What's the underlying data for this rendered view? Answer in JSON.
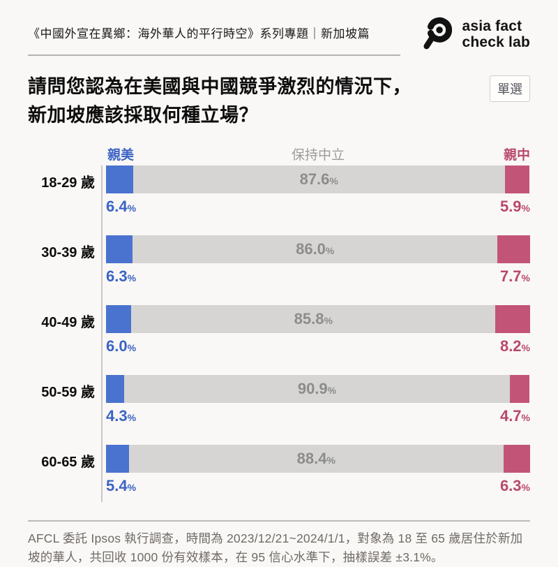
{
  "header": {
    "series_title": "《中國外宣在異鄉：海外華人的平行時空》系列專題｜新加坡篇",
    "logo": {
      "line1": "asia fact",
      "line2": "check lab"
    }
  },
  "question": {
    "line1": "請問您認為在美國與中國競爭激烈的情況下，",
    "line2": "新加坡應該採取何種立場？",
    "badge": "單選"
  },
  "chart_data": {
    "type": "bar",
    "orientation": "horizontal",
    "stacked": true,
    "unit": "%",
    "legend_position": "top",
    "categories": [
      "18-29 歲",
      "30-39 歲",
      "40-49 歲",
      "50-59 歲",
      "60-65 歲"
    ],
    "series": [
      {
        "name": "親美",
        "color": "#4a73cf",
        "label_color": "#3b63c4",
        "values": [
          6.4,
          6.3,
          6.0,
          4.3,
          5.4
        ]
      },
      {
        "name": "保持中立",
        "color": "#d6d5d3",
        "label_color": "#8c8c8c",
        "values": [
          87.6,
          86.0,
          85.8,
          90.9,
          88.4
        ]
      },
      {
        "name": "親中",
        "color": "#c25577",
        "label_color": "#b8486e",
        "values": [
          5.9,
          7.7,
          8.2,
          4.7,
          6.3
        ]
      }
    ]
  },
  "footer": {
    "source": "AFCL 委託 Ipsos 執行調查，時間為 2023/12/21~2024/1/1，對象為 18 至 65 歲居住於新加坡的華人，共回收 1000 份有效樣本，在 95 信心水準下，抽樣誤差 ±3.1%。"
  },
  "colors": {
    "background": "#faf8f6",
    "pro_us": "#4a73cf",
    "neutral": "#d6d5d3",
    "pro_china": "#c25577",
    "divider": "#b3b3b3"
  }
}
